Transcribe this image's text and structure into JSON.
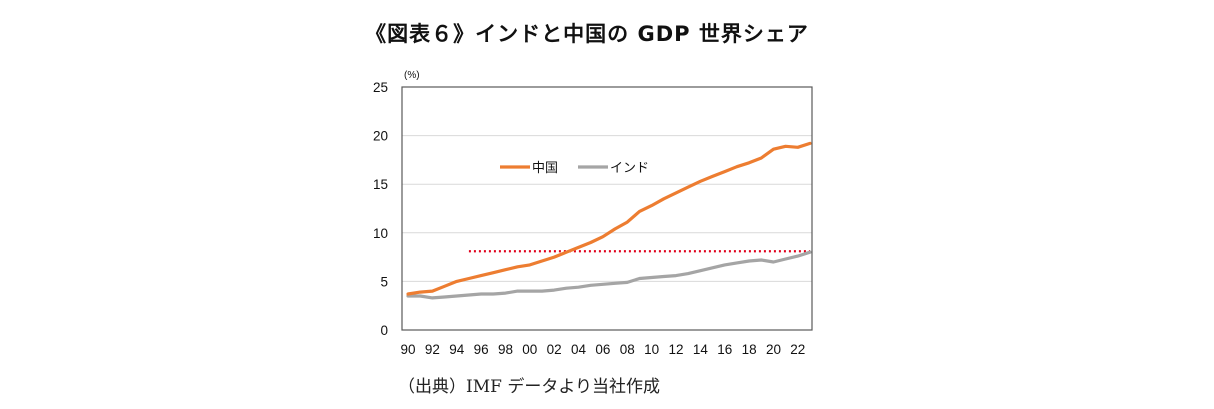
{
  "title": "《図表６》インドと中国の GDP 世界シェア",
  "source": "（出典）IMF データより当社作成",
  "chart_data": {
    "type": "line",
    "title": "《図表６》インドと中国の GDP 世界シェア",
    "xlabel": "",
    "ylabel": "(%)",
    "x": [
      1990,
      1991,
      1992,
      1993,
      1994,
      1995,
      1996,
      1997,
      1998,
      1999,
      2000,
      2001,
      2002,
      2003,
      2004,
      2005,
      2006,
      2007,
      2008,
      2009,
      2010,
      2011,
      2012,
      2013,
      2014,
      2015,
      2016,
      2017,
      2018,
      2019,
      2020,
      2021,
      2022,
      2023
    ],
    "xtick_labels": [
      "90",
      "92",
      "94",
      "96",
      "98",
      "00",
      "02",
      "04",
      "06",
      "08",
      "10",
      "12",
      "14",
      "16",
      "18",
      "20",
      "22"
    ],
    "xtick_years": [
      1990,
      1992,
      1994,
      1996,
      1998,
      2000,
      2002,
      2004,
      2006,
      2008,
      2010,
      2012,
      2014,
      2016,
      2018,
      2020,
      2022
    ],
    "xlim": [
      1990,
      2023
    ],
    "ylim": [
      0,
      25
    ],
    "yticks": [
      0,
      5,
      10,
      15,
      20,
      25
    ],
    "grid": true,
    "legend_position": "upper-left-inside",
    "series": [
      {
        "name": "中国",
        "color": "#ED7D31",
        "values": [
          3.7,
          3.9,
          4.0,
          4.5,
          5.0,
          5.3,
          5.6,
          5.9,
          6.2,
          6.5,
          6.7,
          7.1,
          7.5,
          8.0,
          8.5,
          9.0,
          9.6,
          10.4,
          11.1,
          12.2,
          12.8,
          13.5,
          14.1,
          14.7,
          15.3,
          15.8,
          16.3,
          16.8,
          17.2,
          17.7,
          18.6,
          18.9,
          18.8,
          19.2
        ]
      },
      {
        "name": "インド",
        "color": "#A5A5A5",
        "values": [
          3.5,
          3.5,
          3.3,
          3.4,
          3.5,
          3.6,
          3.7,
          3.7,
          3.8,
          4.0,
          4.0,
          4.0,
          4.1,
          4.3,
          4.4,
          4.6,
          4.7,
          4.8,
          4.9,
          5.3,
          5.4,
          5.5,
          5.6,
          5.8,
          6.1,
          6.4,
          6.7,
          6.9,
          7.1,
          7.2,
          7.0,
          7.3,
          7.6,
          8.0
        ]
      }
    ],
    "annotations": [
      {
        "type": "horizontal-dotted-line",
        "value": 8.1,
        "x_start": 1995,
        "x_end": 2023,
        "color": "#E0001B"
      }
    ]
  }
}
